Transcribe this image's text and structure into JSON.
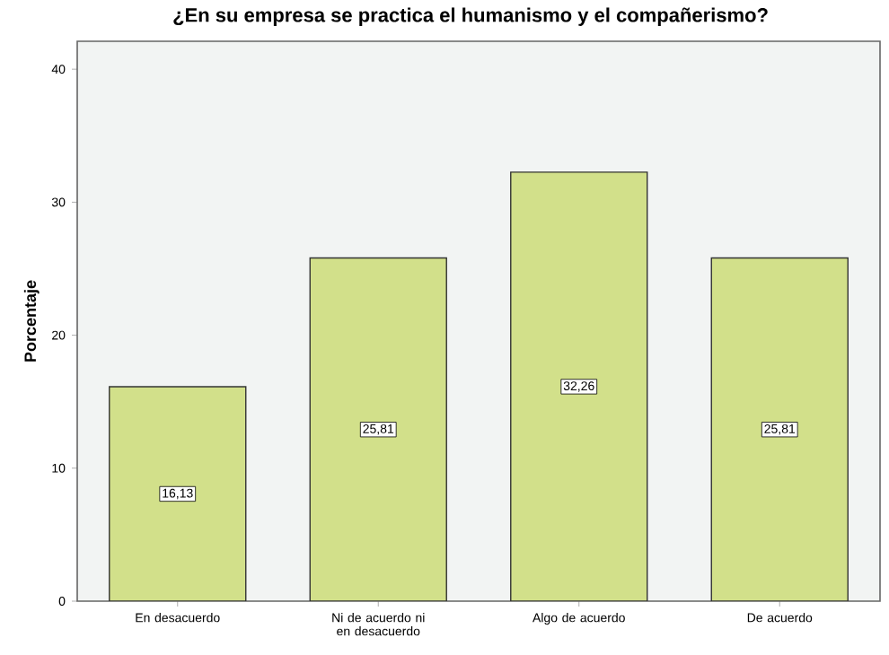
{
  "chart_data": {
    "type": "bar",
    "title": "¿En su empresa se practica el humanismo y el compañerismo?",
    "ylabel": "Porcentaje",
    "categories": [
      "En desacuerdo",
      "Ni de acuerdo ni en desacuerdo",
      "Algo de acuerdo",
      "De acuerdo"
    ],
    "values": [
      16.13,
      25.81,
      32.26,
      25.81
    ],
    "value_labels": [
      "16,13",
      "25,81",
      "32,26",
      "25,81"
    ],
    "color": "#d2e08a",
    "ylim": [
      0,
      42.1
    ],
    "yticks": [
      0,
      10,
      20,
      30,
      40
    ]
  }
}
